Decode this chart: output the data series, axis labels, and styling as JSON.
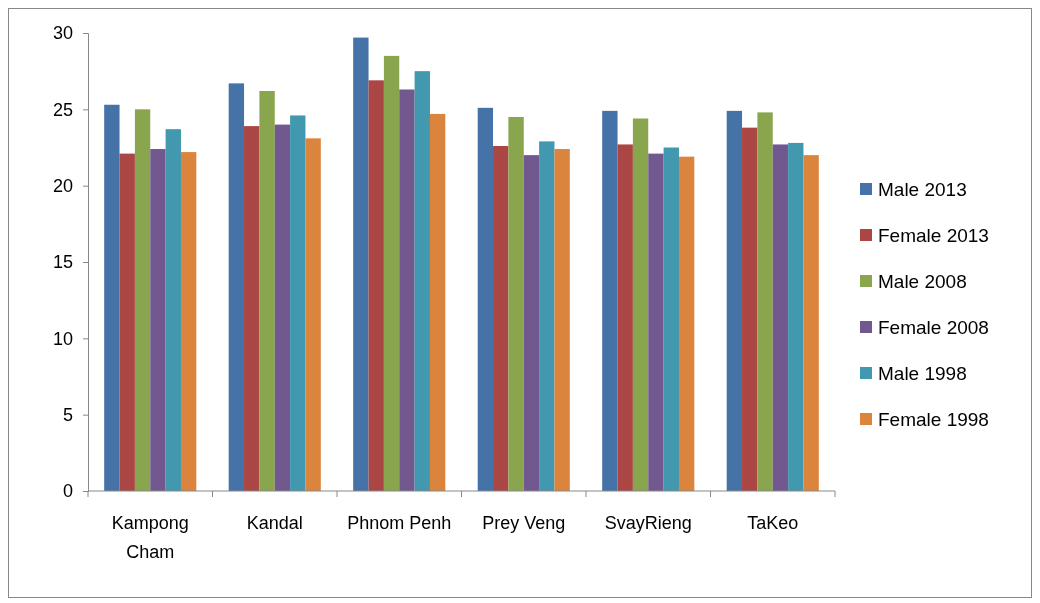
{
  "chart_data": {
    "type": "bar",
    "categories": [
      "Kampong Cham",
      "Kandal",
      "Phnom Penh",
      "Prey Veng",
      "SvayRieng",
      "TaKeo"
    ],
    "series": [
      {
        "name": "Male 2013",
        "color": "#4572a7",
        "values": [
          25.3,
          26.7,
          29.7,
          25.1,
          24.9,
          24.9
        ]
      },
      {
        "name": "Female 2013",
        "color": "#aa4643",
        "values": [
          22.1,
          23.9,
          26.9,
          22.6,
          22.7,
          23.8
        ]
      },
      {
        "name": "Male 2008",
        "color": "#89a54e",
        "values": [
          25.0,
          26.2,
          28.5,
          24.5,
          24.4,
          24.8
        ]
      },
      {
        "name": "Female 2008",
        "color": "#71588f",
        "values": [
          22.4,
          24.0,
          26.3,
          22.0,
          22.1,
          22.7
        ]
      },
      {
        "name": "Male 1998",
        "color": "#4198af",
        "values": [
          23.7,
          24.6,
          27.5,
          22.9,
          22.5,
          22.8
        ]
      },
      {
        "name": "Female 1998",
        "color": "#db843d",
        "values": [
          22.2,
          23.1,
          24.7,
          22.4,
          21.9,
          22.0
        ]
      }
    ],
    "ylim": [
      0,
      30
    ],
    "yticks": [
      0,
      5,
      10,
      15,
      20,
      25,
      30
    ],
    "grid": false,
    "legend": "right"
  }
}
